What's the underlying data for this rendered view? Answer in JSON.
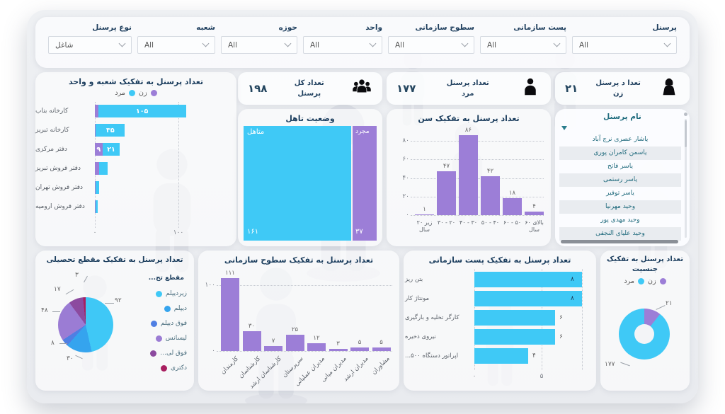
{
  "colors": {
    "cyan": "#3fc9f6",
    "purple": "#9c7ed7",
    "title": "#1c3e5e",
    "teal": "#1f6c7e"
  },
  "filters": [
    {
      "label": "پرسنل",
      "value": "All"
    },
    {
      "label": "پست سازمانی",
      "value": "All"
    },
    {
      "label": "سطوح سازمانی",
      "value": "All"
    },
    {
      "label": "واحد",
      "value": "All"
    },
    {
      "label": "حوزه",
      "value": "All"
    },
    {
      "label": "شعبه",
      "value": "All"
    },
    {
      "label": "نوع پرسنل",
      "value": "شاغل"
    }
  ],
  "kpis": [
    {
      "id": "total",
      "title_lines": [
        "تعداد کل",
        "پرسنل"
      ],
      "value": "۱۹۸",
      "icon": "people-group-icon"
    },
    {
      "id": "male",
      "title_lines": [
        "تعداد پرسنل",
        "مرد"
      ],
      "value": "۱۷۷",
      "icon": "male-person-icon"
    },
    {
      "id": "female",
      "title_lines": [
        "تعدا د پرسنل",
        "زن"
      ],
      "value": "۲۱",
      "icon": "female-person-icon"
    }
  ],
  "name_list": {
    "header": "نام پرسنل",
    "rows": [
      "یاشار عصری نرج آباد",
      "یاسمن کامران پوری",
      "یاسر فاتح",
      "یاسر رستمی",
      "یاسر توفیر",
      "وحید مهرنیا",
      "وحید مهدی پور",
      "وحید علیای النجقی"
    ]
  },
  "chart_data": [
    {
      "type": "bar",
      "orientation": "horizontal",
      "stacked": true,
      "title": "تعداد پرسنل به تفکیک شعبه و واحد",
      "legend": [
        {
          "label": "مرد",
          "color": "#3fc9f6"
        },
        {
          "label": "زن",
          "color": "#9c7ed7"
        }
      ],
      "categories": [
        "کارخانه بناب",
        "کارخانه تبریز",
        "دفتر مرکزی",
        "دفتر فروش تبریز",
        "دفتر فروش تهران",
        "دفتر فروش ارومیه"
      ],
      "series": [
        {
          "name": "زن",
          "color": "#9c7ed7",
          "values": [
            4,
            1,
            9,
            5,
            1,
            1
          ],
          "labels": [
            "",
            "",
            "۹",
            "",
            "",
            ""
          ]
        },
        {
          "name": "مرد",
          "color": "#3fc9f6",
          "values": [
            105,
            35,
            21,
            10,
            4,
            2
          ],
          "labels": [
            "۱۰۵",
            "۳۵",
            "۲۱",
            "",
            "",
            ""
          ]
        }
      ],
      "xticks": [
        {
          "label": "۰",
          "value": 0
        },
        {
          "label": "۱۰۰",
          "value": 100
        }
      ],
      "xlim": [
        0,
        112
      ]
    },
    {
      "type": "treemap",
      "title": "وضعیت تاهل",
      "items": [
        {
          "label": "متاهل",
          "value": 161,
          "value_label": "۱۶۱",
          "color": "#3fc9f6"
        },
        {
          "label": "مجرد",
          "value": 37,
          "value_label": "۳۷",
          "color": "#9c7ed7"
        }
      ]
    },
    {
      "type": "bar",
      "title": "تعداد پرسنل به تفکیک سن",
      "categories": [
        "زیر ۲۰ سال",
        "۲۰ - ۳۰",
        "۳۰ - ۴۰",
        "۴۰ - ۵۰",
        "۵۰ - ۶۰",
        "بالای ۶۰ سال"
      ],
      "values": [
        1,
        47,
        86,
        42,
        18,
        4
      ],
      "value_labels": [
        "۱",
        "۴۷",
        "۸۶",
        "۴۲",
        "۱۸",
        "۴"
      ],
      "color": "#9c7ed7",
      "yticks": [
        {
          "label": "۰",
          "value": 0
        },
        {
          "label": "۲۰",
          "value": 20
        },
        {
          "label": "۴۰",
          "value": 40
        },
        {
          "label": "۶۰",
          "value": 60
        },
        {
          "label": "۸۰",
          "value": 80
        }
      ],
      "ylim": [
        0,
        92
      ]
    },
    {
      "type": "pie",
      "title": "تعداد پرسنل به تفکیک مقطع تحصیلی",
      "legend_title": "مقطع تح...",
      "slices": [
        {
          "label": "زیردیپلم",
          "value": 92,
          "value_label": "۹۲",
          "color": "#3fc8f6"
        },
        {
          "label": "دیپلم",
          "value": 30,
          "value_label": "۳۰",
          "color": "#35a4ee"
        },
        {
          "label": "فوق دیپلم",
          "value": 8,
          "value_label": "۸",
          "color": "#4f7fe3"
        },
        {
          "label": "لیسانس",
          "value": 48,
          "value_label": "۴۸",
          "color": "#9b7cd4"
        },
        {
          "label": "فوق لی...",
          "value": 17,
          "value_label": "۱۷",
          "color": "#8c4a9f"
        },
        {
          "label": "دکتری",
          "value": 3,
          "value_label": "۳",
          "color": "#a81f60"
        }
      ]
    },
    {
      "type": "bar",
      "title": "تعداد پرسنل به تفکیک سطوح سازمانی",
      "categories": [
        "کارمندان",
        "کارشناسان",
        "کارشناسان ارشد",
        "سرپرستان",
        "مدیران عملیاتی",
        "مدیران میانی",
        "مدیران ارشد",
        "مشاوران"
      ],
      "values": [
        111,
        30,
        7,
        25,
        12,
        3,
        5,
        5
      ],
      "value_labels": [
        "۱۱۱",
        "۳۰",
        "۷",
        "۲۵",
        "۱۲",
        "۳",
        "۵",
        "۵"
      ],
      "color": "#9c7ed7",
      "yticks": [
        {
          "label": "۰",
          "value": 0
        },
        {
          "label": "۱۰۰",
          "value": 100
        }
      ],
      "ylim": [
        0,
        120
      ]
    },
    {
      "type": "bar",
      "orientation": "horizontal",
      "title": "تعداد پرسنل به تفکیک پست سازمانی",
      "categories": [
        "بتن ریز",
        "مونتاژ کار",
        "کارگر تخلیه و بارگیری",
        "نیروی ذخیره",
        "اپراتور دستگاه ۵۰۰..."
      ],
      "values": [
        8,
        8,
        6,
        6,
        4
      ],
      "value_labels": [
        "۸",
        "۸",
        "۶",
        "۶",
        "۴"
      ],
      "color": "#3fc9f6",
      "xticks": [
        {
          "label": "۰",
          "value": 0
        },
        {
          "label": "۵",
          "value": 5
        }
      ],
      "xlim": [
        0,
        8
      ]
    },
    {
      "type": "donut",
      "title": "تعداد پرسنل به تفکیک جنسیت",
      "title_lines": [
        "تعداد پرسنل به تفکیک",
        "جنسیت"
      ],
      "legend": [
        {
          "label": "مرد",
          "color": "#3fc9f6"
        },
        {
          "label": "زن",
          "color": "#9c7ed7"
        }
      ],
      "slices": [
        {
          "label": "زن",
          "value": 21,
          "value_label": "۲۱",
          "color": "#9c7ed7"
        },
        {
          "label": "مرد",
          "value": 177,
          "value_label": "۱۷۷",
          "color": "#3fc9f6"
        }
      ]
    }
  ]
}
